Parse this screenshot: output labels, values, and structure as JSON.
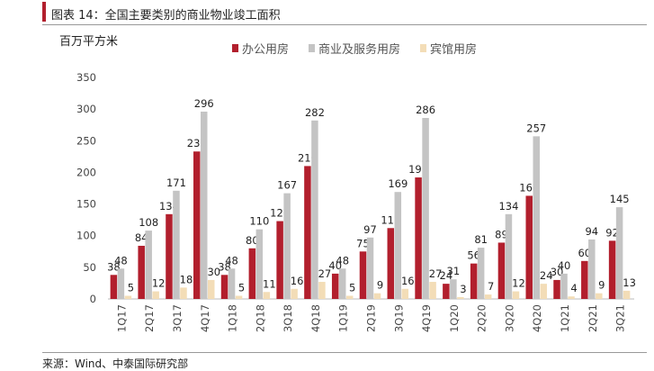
{
  "header": {
    "title": "图表 14：全国主要类别的商业物业竣工面积",
    "unit": "百万平方米",
    "source": "来源：Wind、中泰国际研究部"
  },
  "chart_data": {
    "type": "bar",
    "categories": [
      "1Q17",
      "2Q17",
      "3Q17",
      "4Q17",
      "1Q18",
      "2Q18",
      "3Q18",
      "4Q18",
      "1Q19",
      "2Q19",
      "3Q19",
      "4Q19",
      "1Q20",
      "2Q20",
      "3Q20",
      "4Q20",
      "1Q21",
      "2Q21",
      "3Q21"
    ],
    "series": [
      {
        "name": "办公用房",
        "color": "#b21f2d",
        "values": [
          38,
          84,
          134,
          233,
          38,
          80,
          123,
          210,
          40,
          75,
          112,
          192,
          24,
          56,
          89,
          163,
          30,
          60,
          92
        ]
      },
      {
        "name": "商业及服务用房",
        "color": "#c4c4c4",
        "values": [
          48,
          108,
          171,
          296,
          48,
          110,
          167,
          282,
          48,
          97,
          169,
          286,
          31,
          81,
          134,
          257,
          40,
          94,
          145
        ]
      },
      {
        "name": "宾馆用房",
        "color": "#f3ddb7",
        "values": [
          5,
          12,
          18,
          30,
          5,
          11,
          16,
          27,
          5,
          9,
          16,
          27,
          3,
          7,
          12,
          24,
          4,
          9,
          13
        ]
      }
    ],
    "ylim": [
      0,
      350
    ],
    "yticks": [
      0,
      50,
      100,
      150,
      200,
      250,
      300,
      350
    ],
    "ylabel": "百万平方米",
    "legend_position": "top-center",
    "grid": false
  }
}
